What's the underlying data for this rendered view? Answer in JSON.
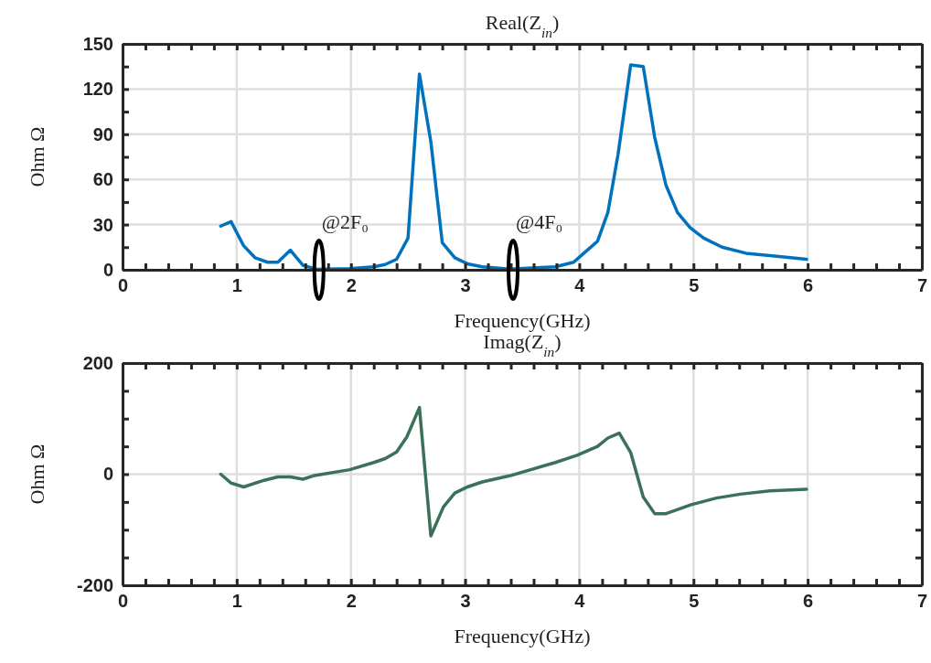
{
  "chart_data": [
    {
      "type": "line",
      "title": "Real(Z$_{in}$)",
      "xlabel": "Frequency(GHz)",
      "ylabel": "Ohm Ω",
      "color": "#0072bd",
      "grid": true,
      "xlim": [
        0,
        7
      ],
      "ylim": [
        0,
        150
      ],
      "xticks": [
        0,
        {
          "value": 0.2,
          "label": null
        },
        {
          "value": 0.4,
          "label": null
        },
        {
          "value": 0.6,
          "label": null
        },
        {
          "value": 0.8,
          "label": null
        },
        1,
        {
          "value": 1.2,
          "label": null
        },
        {
          "value": 1.4,
          "label": null
        },
        {
          "value": 1.6,
          "label": null
        },
        {
          "value": 1.8,
          "label": null
        },
        2,
        {
          "value": 2.2,
          "label": null
        },
        {
          "value": 2.4,
          "label": null
        },
        {
          "value": 2.6,
          "label": null
        },
        {
          "value": 2.8,
          "label": null
        },
        3,
        {
          "value": 3.2,
          "label": null
        },
        {
          "value": 3.4,
          "label": null
        },
        {
          "value": 3.6,
          "label": null
        },
        {
          "value": 3.8,
          "label": null
        },
        4,
        {
          "value": 4.2,
          "label": null
        },
        {
          "value": 4.4,
          "label": null
        },
        {
          "value": 4.6,
          "label": null
        },
        {
          "value": 4.8,
          "label": null
        },
        5,
        {
          "value": 5.2,
          "label": null
        },
        {
          "value": 5.4,
          "label": null
        },
        {
          "value": 5.6,
          "label": null
        },
        {
          "value": 5.8,
          "label": null
        },
        6,
        {
          "value": 6.2,
          "label": null
        },
        {
          "value": 6.4,
          "label": null
        },
        {
          "value": 6.6,
          "label": null
        },
        {
          "value": 6.8,
          "label": null
        },
        7
      ],
      "yticks": [
        0,
        {
          "value": 15,
          "label": null
        },
        30,
        {
          "value": 45,
          "label": null
        },
        60,
        {
          "value": 75,
          "label": null
        },
        90,
        {
          "value": 105,
          "label": null
        },
        120,
        {
          "value": 135,
          "label": null
        },
        150
      ],
      "x": [
        0.86,
        0.95,
        1.06,
        1.16,
        1.27,
        1.36,
        1.47,
        1.58,
        1.7,
        1.99,
        2.2,
        2.3,
        2.4,
        2.5,
        2.6,
        2.7,
        2.8,
        2.91,
        3.02,
        3.15,
        3.39,
        3.79,
        3.95,
        4.04,
        4.16,
        4.25,
        4.34,
        4.45,
        4.56,
        4.66,
        4.76,
        4.86,
        4.97,
        5.09,
        5.25,
        5.46,
        5.73,
        5.99
      ],
      "values": [
        29,
        32,
        16,
        8,
        5,
        5,
        13,
        3,
        0.3,
        0.7,
        2,
        3.5,
        7,
        21,
        130,
        85,
        18,
        8,
        4,
        2,
        0.5,
        2,
        5,
        11,
        19,
        38,
        77,
        136,
        135,
        88,
        56,
        38,
        28,
        21,
        15,
        11,
        9,
        7
      ],
      "annotations": [
        {
          "text": "@2F₀",
          "x": 1.72,
          "y": 0
        },
        {
          "text": "@4F₀",
          "x": 3.42,
          "y": 0
        }
      ]
    },
    {
      "type": "line",
      "title": "Imag(Z$_{in}$)",
      "xlabel": "Frequency(GHz)",
      "ylabel": "Ohm Ω",
      "color": "#3a7158",
      "grid": true,
      "xlim": [
        0,
        7
      ],
      "ylim": [
        -200,
        200
      ],
      "xticks": [
        0,
        {
          "value": 0.2,
          "label": null
        },
        {
          "value": 0.4,
          "label": null
        },
        {
          "value": 0.6,
          "label": null
        },
        {
          "value": 0.8,
          "label": null
        },
        1,
        {
          "value": 1.2,
          "label": null
        },
        {
          "value": 1.4,
          "label": null
        },
        {
          "value": 1.6,
          "label": null
        },
        {
          "value": 1.8,
          "label": null
        },
        2,
        {
          "value": 2.2,
          "label": null
        },
        {
          "value": 2.4,
          "label": null
        },
        {
          "value": 2.6,
          "label": null
        },
        {
          "value": 2.8,
          "label": null
        },
        3,
        {
          "value": 3.2,
          "label": null
        },
        {
          "value": 3.4,
          "label": null
        },
        {
          "value": 3.6,
          "label": null
        },
        {
          "value": 3.8,
          "label": null
        },
        4,
        {
          "value": 4.2,
          "label": null
        },
        {
          "value": 4.4,
          "label": null
        },
        {
          "value": 4.6,
          "label": null
        },
        {
          "value": 4.8,
          "label": null
        },
        5,
        {
          "value": 5.2,
          "label": null
        },
        {
          "value": 5.4,
          "label": null
        },
        {
          "value": 5.6,
          "label": null
        },
        {
          "value": 5.8,
          "label": null
        },
        6,
        {
          "value": 6.2,
          "label": null
        },
        {
          "value": 6.4,
          "label": null
        },
        {
          "value": 6.6,
          "label": null
        },
        {
          "value": 6.8,
          "label": null
        },
        7
      ],
      "yticks": [
        -200,
        {
          "value": -150,
          "label": null
        },
        {
          "value": -100,
          "label": null
        },
        {
          "value": -50,
          "label": null
        },
        0,
        {
          "value": 50,
          "label": null
        },
        {
          "value": 100,
          "label": null
        },
        {
          "value": 150,
          "label": null
        },
        200
      ],
      "x": [
        0.86,
        0.95,
        1.06,
        1.24,
        1.36,
        1.47,
        1.58,
        1.67,
        1.99,
        2.2,
        2.3,
        2.4,
        2.49,
        2.6,
        2.7,
        2.81,
        2.91,
        3.02,
        3.15,
        3.39,
        3.79,
        3.98,
        4.05,
        4.16,
        4.25,
        4.35,
        4.45,
        4.56,
        4.66,
        4.76,
        4.98,
        5.2,
        5.41,
        5.67,
        5.99
      ],
      "values": [
        0,
        -16,
        -23,
        -11,
        -5,
        -5,
        -9,
        -3,
        8,
        21,
        28,
        40,
        67,
        120,
        -111,
        -59,
        -34,
        -23,
        -14,
        -3,
        21,
        34,
        40,
        50,
        65,
        74,
        39,
        -41,
        -71,
        -71,
        -55,
        -43,
        -36,
        -30,
        -27
      ]
    }
  ]
}
